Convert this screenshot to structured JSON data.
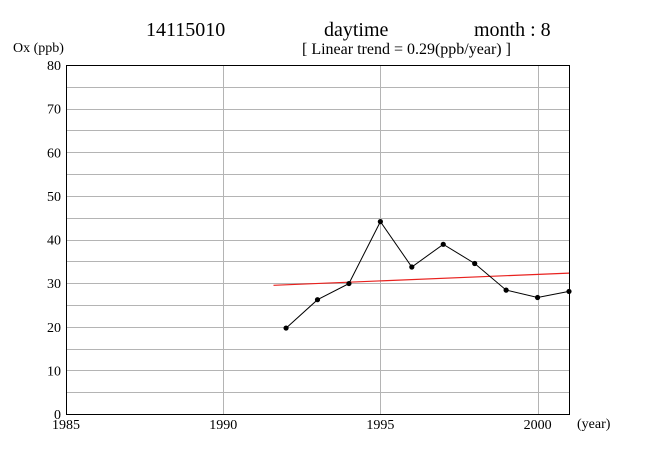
{
  "header": {
    "station": "14115010",
    "period": "daytime",
    "month": "month : 8",
    "trend_label": "[ Linear trend = 0.29(ppb/year) ]"
  },
  "colors": {
    "series": "#000000",
    "trend": "#e8211e",
    "grid": "#b4b4b4",
    "axes": "#000000"
  },
  "chart_data": {
    "type": "line",
    "ylabel": "Ox (ppb)",
    "xlabel": "(year)",
    "xlim": [
      1985,
      2001
    ],
    "ylim": [
      0,
      80
    ],
    "x_ticks": [
      1985,
      1990,
      1995,
      2000
    ],
    "y_ticks": [
      0,
      10,
      20,
      30,
      40,
      50,
      60,
      70,
      80
    ],
    "x_grid_step": 5,
    "y_grid_step": 5,
    "grid": true,
    "series": [
      {
        "x": [
          1992,
          1993,
          1994,
          1995,
          1996,
          1997,
          1998,
          1999,
          2000,
          2001
        ],
        "values": [
          19.7,
          26.2,
          29.9,
          44.1,
          33.7,
          38.9,
          34.5,
          28.4,
          26.7,
          28.1
        ]
      }
    ],
    "trendline": {
      "x": [
        1991.6,
        2001
      ],
      "values": [
        29.5,
        32.3
      ]
    }
  }
}
